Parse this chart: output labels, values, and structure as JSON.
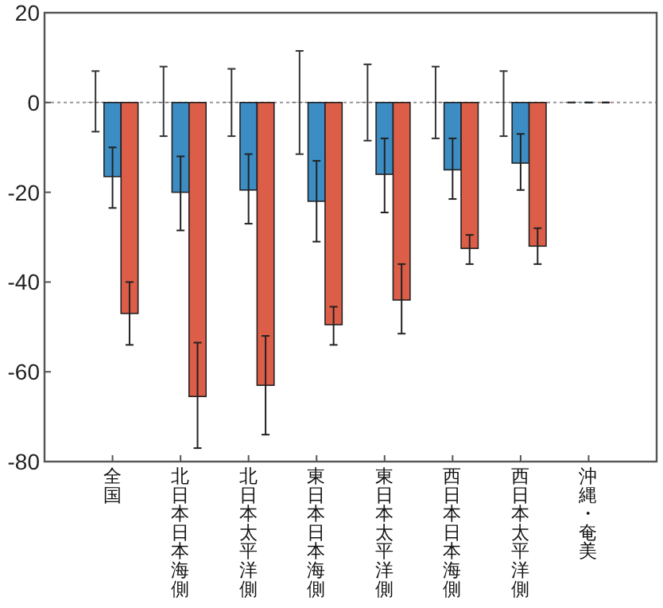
{
  "chart_data": {
    "type": "bar",
    "categories": [
      "全国",
      "北日本日本海側",
      "北日本太平洋側",
      "東日本日本海側",
      "東日本太平洋側",
      "西日本日本海側",
      "西日本太平洋側",
      "沖縄・奄美"
    ],
    "ylim": [
      -80,
      20
    ],
    "yticks": [
      -80,
      -60,
      -40,
      -20,
      0,
      20
    ],
    "grid": false,
    "ref_lines": [
      {
        "axis": "y",
        "value": 0,
        "color": "#999999",
        "line_style": "dotted"
      }
    ],
    "series": [
      {
        "color": "#333333",
        "values": [
          0,
          0,
          0,
          0,
          0,
          0,
          0,
          0
        ],
        "errors": [
          [
            -6.5,
            7
          ],
          [
            -7.5,
            8
          ],
          [
            -7.5,
            7.5
          ],
          [
            -11.5,
            11.5
          ],
          [
            -8.5,
            8.5
          ],
          [
            -8,
            8
          ],
          [
            -7.5,
            7
          ],
          [
            0,
            0
          ]
        ]
      },
      {
        "color": "#3c8dc4",
        "values": [
          -16.5,
          -20,
          -19.5,
          -22,
          -16,
          -15,
          -13.5,
          0
        ],
        "errors": [
          [
            -23.5,
            -10
          ],
          [
            -28.5,
            -12
          ],
          [
            -27,
            -11.5
          ],
          [
            -31,
            -13
          ],
          [
            -24.5,
            -8
          ],
          [
            -21.5,
            -8
          ],
          [
            -19.5,
            -7
          ],
          [
            0,
            0
          ]
        ]
      },
      {
        "color": "#dd5e48",
        "values": [
          -47,
          -65.5,
          -63,
          -49.5,
          -44,
          -32.5,
          -32,
          0
        ],
        "errors": [
          [
            -54,
            -40
          ],
          [
            -77,
            -53.5
          ],
          [
            -74,
            -52
          ],
          [
            -54,
            -45.5
          ],
          [
            -51.5,
            -36
          ],
          [
            -36,
            -29.5
          ],
          [
            -36,
            -28
          ],
          [
            0,
            0
          ]
        ]
      }
    ]
  }
}
